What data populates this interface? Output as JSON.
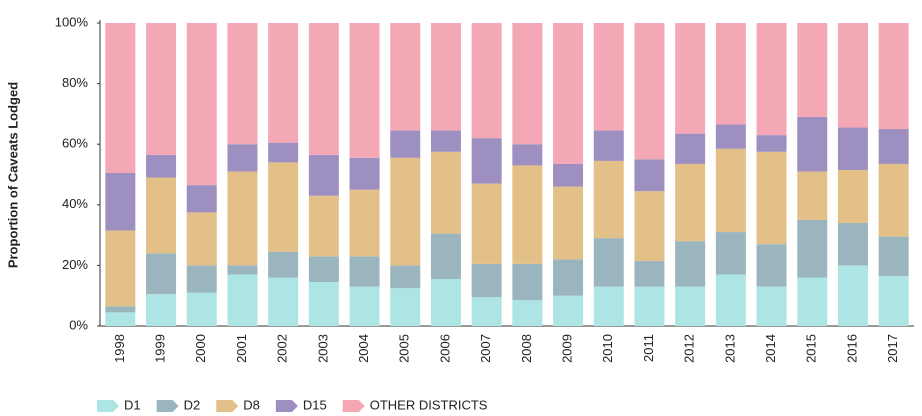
{
  "chart_data": {
    "type": "stacked_bar",
    "y_label": "Proportion of Caveats Lodged",
    "categories": [
      "1998",
      "1999",
      "2000",
      "2001",
      "2002",
      "2003",
      "2004",
      "2005",
      "2006",
      "2007",
      "2008",
      "2009",
      "2010",
      "2011",
      "2012",
      "2013",
      "2014",
      "2015",
      "2016",
      "2017"
    ],
    "series": [
      {
        "name": "D1",
        "color": "#ace5e4",
        "values": [
          4.5,
          10.5,
          11,
          17,
          16,
          14.5,
          13,
          12.5,
          15.5,
          9.5,
          8.5,
          10,
          13,
          13,
          13,
          17,
          13,
          16,
          20,
          16.5
        ]
      },
      {
        "name": "D2",
        "color": "#9bb5bf",
        "values": [
          2,
          13.5,
          9,
          3,
          8.5,
          8.5,
          10,
          7.5,
          15,
          11,
          12,
          12,
          16,
          8.5,
          15,
          14,
          14,
          19,
          14,
          13
        ]
      },
      {
        "name": "D8",
        "color": "#e4c089",
        "values": [
          25,
          25,
          17.5,
          31,
          29.5,
          20,
          22,
          35.5,
          27,
          26.5,
          32.5,
          24,
          25.5,
          23,
          25.5,
          27.5,
          30.5,
          16,
          17.5,
          24
        ]
      },
      {
        "name": "D15",
        "color": "#9d8fc0",
        "values": [
          19,
          7.5,
          9,
          9,
          6.5,
          13.5,
          10.5,
          9,
          7,
          15,
          7,
          7.5,
          10,
          10.5,
          10,
          8,
          5.5,
          18,
          14,
          11.5
        ]
      },
      {
        "name": "OTHER DISTRICTS",
        "color": "#f4a8b6",
        "values": [
          49.5,
          43.5,
          53.5,
          40,
          39.5,
          43.5,
          44.5,
          35.5,
          35.5,
          38,
          40,
          46.5,
          35.5,
          45,
          36.5,
          33.5,
          37,
          31,
          34.5,
          35
        ]
      }
    ],
    "ylim": [
      0,
      100
    ],
    "yticks": [
      {
        "value": 0,
        "label": "0%"
      },
      {
        "value": 20,
        "label": "20%"
      },
      {
        "value": 40,
        "label": "40%"
      },
      {
        "value": 60,
        "label": "60%"
      },
      {
        "value": 80,
        "label": "80%"
      },
      {
        "value": 100,
        "label": "100%"
      }
    ],
    "legend": "bottom-left"
  }
}
